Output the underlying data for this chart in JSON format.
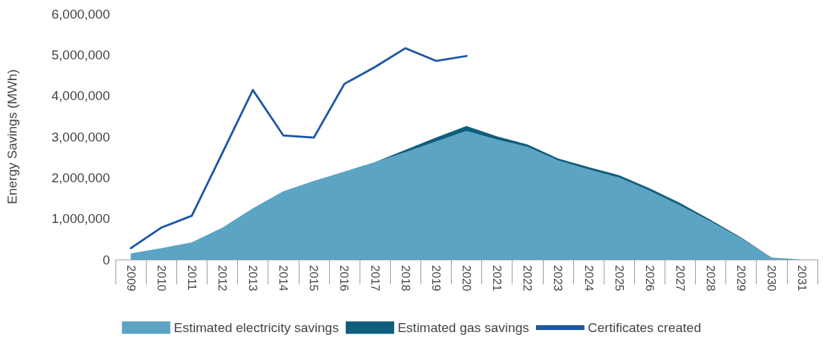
{
  "chart_data": {
    "type": "area",
    "ylabel": "Energy Savings (MWh)",
    "categories": [
      "2009",
      "2010",
      "2011",
      "2012",
      "2013",
      "2014",
      "2015",
      "2016",
      "2017",
      "2018",
      "2019",
      "2020",
      "2021",
      "2022",
      "2023",
      "2024",
      "2025",
      "2026",
      "2027",
      "2028",
      "2029",
      "2030",
      "2031"
    ],
    "stacked": true,
    "series": [
      {
        "name": "Estimated electricity savings",
        "type": "area",
        "color": "#5ba4c3",
        "values": [
          150000,
          280000,
          420000,
          780000,
          1250000,
          1670000,
          1920000,
          2150000,
          2380000,
          2620000,
          2880000,
          3140000,
          2930000,
          2750000,
          2420000,
          2200000,
          2000000,
          1680000,
          1320000,
          930000,
          520000,
          50000,
          0
        ]
      },
      {
        "name": "Estimated gas savings",
        "type": "area",
        "color": "#0f5e7e",
        "values": [
          0,
          0,
          0,
          0,
          0,
          0,
          0,
          0,
          0,
          60000,
          100000,
          120000,
          80000,
          60000,
          50000,
          60000,
          60000,
          60000,
          60000,
          40000,
          20000,
          0,
          0
        ]
      },
      {
        "name": "Certificates created",
        "type": "line",
        "color": "#1d58a6",
        "values": [
          280000,
          780000,
          1070000,
          2600000,
          4140000,
          3030000,
          2980000,
          4290000,
          4700000,
          5160000,
          4850000,
          4970000,
          null,
          null,
          null,
          null,
          null,
          null,
          null,
          null,
          null,
          null,
          null
        ]
      }
    ],
    "ylim": [
      0,
      6000000
    ],
    "yticks": [
      0,
      {
        "value": 1000000,
        "label": "1,000,000"
      },
      {
        "value": 2000000,
        "label": "2,000,000"
      },
      {
        "value": 3000000,
        "label": "3,000,000"
      },
      {
        "value": 4000000,
        "label": "4,000,000"
      },
      {
        "value": 5000000,
        "label": "5,000,000"
      },
      {
        "value": 6000000,
        "label": "6,000,000"
      }
    ],
    "grid": false,
    "legend": "bottom",
    "marker": "none",
    "line_style": "solid"
  }
}
